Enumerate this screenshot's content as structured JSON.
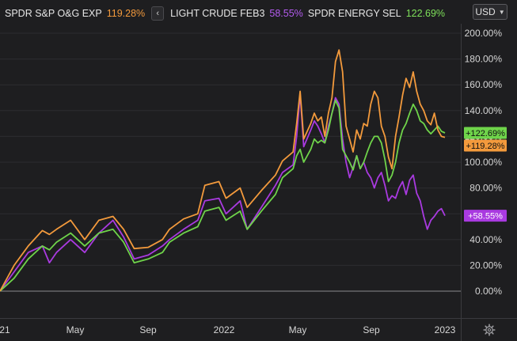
{
  "legend": [
    {
      "name": "SPDR S&P O&G EXP",
      "value": "119.28%",
      "color": "#f39a3c"
    },
    {
      "name": "LIGHT CRUDE FEB3",
      "value": "58.55%",
      "color": "#a93ae0"
    },
    {
      "name": "SPDR ENERGY SEL",
      "value": "122.69%",
      "color": "#6fd44a"
    }
  ],
  "legend_arrow": "‹",
  "currency": {
    "label": "USD"
  },
  "settings_icon": "gear-icon",
  "chart_data": {
    "type": "line",
    "x_ticks": [
      "21",
      "May",
      "Sep",
      "2022",
      "May",
      "Sep",
      "2023"
    ],
    "y_ticks": [
      "200.00%",
      "180.00%",
      "160.00%",
      "140.00%",
      "120.00%",
      "100.00%",
      "80.00%",
      "60.00%",
      "40.00%",
      "20.00%",
      "0.00%"
    ],
    "ylim": [
      -2,
      205
    ],
    "series": [
      {
        "name": "SPDR S&P O&G EXP",
        "color": "#f39a3c",
        "last": "+119.28%",
        "values": [
          [
            0,
            0
          ],
          [
            4,
            20
          ],
          [
            8,
            35
          ],
          [
            12,
            47
          ],
          [
            14,
            44
          ],
          [
            16,
            48
          ],
          [
            20,
            55
          ],
          [
            24,
            40
          ],
          [
            28,
            55
          ],
          [
            32,
            58
          ],
          [
            35,
            48
          ],
          [
            38,
            33
          ],
          [
            42,
            34
          ],
          [
            46,
            40
          ],
          [
            48,
            48
          ],
          [
            52,
            56
          ],
          [
            56,
            60
          ],
          [
            58,
            82
          ],
          [
            62,
            85
          ],
          [
            64,
            72
          ],
          [
            68,
            80
          ],
          [
            70,
            65
          ],
          [
            74,
            78
          ],
          [
            78,
            90
          ],
          [
            80,
            101
          ],
          [
            83,
            108
          ],
          [
            84,
            130
          ],
          [
            85,
            155
          ],
          [
            86,
            118
          ],
          [
            88,
            130
          ],
          [
            89,
            138
          ],
          [
            90,
            132
          ],
          [
            91,
            135
          ],
          [
            92,
            120
          ],
          [
            93,
            138
          ],
          [
            94,
            150
          ],
          [
            95,
            178
          ],
          [
            96,
            187
          ],
          [
            97,
            170
          ],
          [
            98,
            128
          ],
          [
            99,
            118
          ],
          [
            100,
            108
          ],
          [
            101,
            125
          ],
          [
            102,
            118
          ],
          [
            103,
            130
          ],
          [
            104,
            128
          ],
          [
            105,
            145
          ],
          [
            106,
            155
          ],
          [
            107,
            150
          ],
          [
            108,
            128
          ],
          [
            109,
            120
          ],
          [
            110,
            104
          ],
          [
            111,
            95
          ],
          [
            112,
            120
          ],
          [
            113,
            135
          ],
          [
            114,
            152
          ],
          [
            115,
            165
          ],
          [
            116,
            158
          ],
          [
            117,
            170
          ],
          [
            118,
            155
          ],
          [
            119,
            145
          ],
          [
            120,
            140
          ],
          [
            121,
            132
          ],
          [
            122,
            129
          ],
          [
            123,
            138
          ],
          [
            124,
            125
          ],
          [
            125,
            120
          ],
          [
            126,
            119.28
          ]
        ]
      },
      {
        "name": "LIGHT CRUDE FEB3",
        "color": "#a93ae0",
        "last": "+58.55%",
        "values": [
          [
            0,
            0
          ],
          [
            4,
            15
          ],
          [
            8,
            30
          ],
          [
            12,
            35
          ],
          [
            14,
            22
          ],
          [
            16,
            30
          ],
          [
            20,
            40
          ],
          [
            24,
            30
          ],
          [
            28,
            45
          ],
          [
            32,
            55
          ],
          [
            35,
            42
          ],
          [
            38,
            25
          ],
          [
            42,
            28
          ],
          [
            46,
            35
          ],
          [
            48,
            40
          ],
          [
            52,
            48
          ],
          [
            56,
            55
          ],
          [
            58,
            70
          ],
          [
            62,
            72
          ],
          [
            64,
            60
          ],
          [
            68,
            70
          ],
          [
            70,
            48
          ],
          [
            74,
            65
          ],
          [
            78,
            82
          ],
          [
            80,
            92
          ],
          [
            83,
            98
          ],
          [
            84,
            120
          ],
          [
            85,
            153
          ],
          [
            86,
            112
          ],
          [
            88,
            125
          ],
          [
            89,
            132
          ],
          [
            90,
            128
          ],
          [
            91,
            122
          ],
          [
            92,
            115
          ],
          [
            93,
            128
          ],
          [
            94,
            138
          ],
          [
            95,
            150
          ],
          [
            96,
            145
          ],
          [
            97,
            118
          ],
          [
            98,
            100
          ],
          [
            99,
            88
          ],
          [
            100,
            96
          ],
          [
            101,
            105
          ],
          [
            102,
            95
          ],
          [
            103,
            100
          ],
          [
            104,
            92
          ],
          [
            105,
            88
          ],
          [
            106,
            80
          ],
          [
            107,
            88
          ],
          [
            108,
            92
          ],
          [
            109,
            82
          ],
          [
            110,
            70
          ],
          [
            111,
            74
          ],
          [
            112,
            72
          ],
          [
            113,
            80
          ],
          [
            114,
            85
          ],
          [
            115,
            75
          ],
          [
            116,
            86
          ],
          [
            117,
            90
          ],
          [
            118,
            76
          ],
          [
            119,
            70
          ],
          [
            120,
            58
          ],
          [
            121,
            48
          ],
          [
            122,
            55
          ],
          [
            123,
            58
          ],
          [
            124,
            62
          ],
          [
            125,
            64
          ],
          [
            126,
            58.55
          ]
        ]
      },
      {
        "name": "SPDR ENERGY SEL",
        "color": "#6fd44a",
        "last": "+122.69%",
        "values": [
          [
            0,
            0
          ],
          [
            4,
            10
          ],
          [
            8,
            25
          ],
          [
            12,
            35
          ],
          [
            14,
            32
          ],
          [
            16,
            38
          ],
          [
            20,
            45
          ],
          [
            24,
            35
          ],
          [
            28,
            45
          ],
          [
            32,
            48
          ],
          [
            35,
            38
          ],
          [
            38,
            22
          ],
          [
            42,
            25
          ],
          [
            46,
            30
          ],
          [
            48,
            38
          ],
          [
            52,
            45
          ],
          [
            56,
            50
          ],
          [
            58,
            62
          ],
          [
            62,
            65
          ],
          [
            64,
            55
          ],
          [
            68,
            62
          ],
          [
            70,
            48
          ],
          [
            74,
            62
          ],
          [
            78,
            75
          ],
          [
            80,
            88
          ],
          [
            83,
            95
          ],
          [
            84,
            105
          ],
          [
            85,
            110
          ],
          [
            86,
            100
          ],
          [
            88,
            110
          ],
          [
            89,
            118
          ],
          [
            90,
            115
          ],
          [
            91,
            117
          ],
          [
            92,
            115
          ],
          [
            93,
            125
          ],
          [
            94,
            138
          ],
          [
            95,
            148
          ],
          [
            96,
            142
          ],
          [
            97,
            110
          ],
          [
            98,
            105
          ],
          [
            99,
            100
          ],
          [
            100,
            94
          ],
          [
            101,
            105
          ],
          [
            102,
            95
          ],
          [
            103,
            100
          ],
          [
            104,
            108
          ],
          [
            105,
            115
          ],
          [
            106,
            120
          ],
          [
            107,
            120
          ],
          [
            108,
            115
          ],
          [
            109,
            102
          ],
          [
            110,
            85
          ],
          [
            111,
            90
          ],
          [
            112,
            100
          ],
          [
            113,
            115
          ],
          [
            114,
            125
          ],
          [
            115,
            130
          ],
          [
            116,
            138
          ],
          [
            117,
            145
          ],
          [
            118,
            140
          ],
          [
            119,
            132
          ],
          [
            120,
            130
          ],
          [
            121,
            125
          ],
          [
            122,
            122
          ],
          [
            123,
            125
          ],
          [
            124,
            128
          ],
          [
            125,
            124
          ],
          [
            126,
            122.69
          ]
        ]
      }
    ]
  }
}
